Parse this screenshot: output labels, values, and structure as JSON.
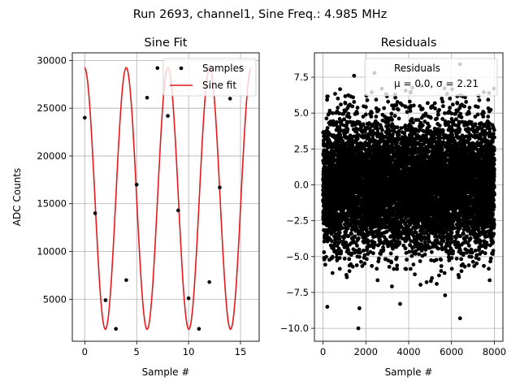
{
  "suptitle": "Run 2693, channel1, Sine Freq.: 4.985 MHz",
  "chart_data": [
    {
      "type": "line",
      "title": "Sine Fit",
      "xlabel": "Sample #",
      "ylabel": "ADC Counts",
      "xlim": [
        -1.2,
        16.8
      ],
      "ylim": [
        600,
        30800
      ],
      "xticks": [
        0,
        5,
        10,
        15
      ],
      "xtick_labels": [
        "0",
        "5",
        "10",
        "15"
      ],
      "yticks": [
        5000,
        10000,
        15000,
        20000,
        25000,
        30000
      ],
      "ytick_labels": [
        "5000",
        "10000",
        "15000",
        "20000",
        "25000",
        "30000"
      ],
      "grid": true,
      "legend": {
        "position": "top-right",
        "entries": [
          "Samples",
          "Sine fit"
        ]
      },
      "series": [
        {
          "name": "Samples",
          "kind": "scatter",
          "color": "#000000",
          "x": [
            0,
            1,
            2,
            3,
            4,
            5,
            6,
            7,
            8,
            9,
            10,
            11,
            12,
            13,
            14,
            15
          ],
          "y": [
            24000,
            14000,
            4900,
            1900,
            7000,
            17000,
            26100,
            29200,
            24200,
            14300,
            5100,
            1900,
            6800,
            16700,
            26000,
            29200
          ]
        },
        {
          "name": "Sine fit",
          "kind": "line",
          "color": "#e41a1c",
          "model": {
            "amplitude": 13700,
            "offset": 15550,
            "frequency_cycles_per_sample": 0.2488,
            "phase_rad": 1.61,
            "x_range": [
              0,
              16
            ]
          }
        }
      ]
    },
    {
      "type": "scatter",
      "title": "Residuals",
      "xlabel": "Sample #",
      "ylabel": "",
      "xlim": [
        -400,
        8400
      ],
      "ylim": [
        -10.9,
        9.2
      ],
      "xticks": [
        0,
        2000,
        4000,
        6000,
        8000
      ],
      "xtick_labels": [
        "0",
        "2000",
        "4000",
        "6000",
        "8000"
      ],
      "yticks": [
        -10.0,
        -7.5,
        -5.0,
        -2.5,
        0.0,
        2.5,
        5.0,
        7.5
      ],
      "ytick_labels": [
        "−10.0",
        "−7.5",
        "−5.0",
        "−2.5",
        "0.0",
        "2.5",
        "5.0",
        "7.5"
      ],
      "grid": true,
      "legend": {
        "position": "top-right",
        "entries": [
          "Residuals",
          "μ = 0.0, σ = 2.21"
        ]
      },
      "series": [
        {
          "name": "Residuals",
          "color": "#000000",
          "n_points": 8000,
          "mean": 0.0,
          "sigma": 2.21,
          "outliers": [
            {
              "x": 1650,
              "y": -10.0
            },
            {
              "x": 6400,
              "y": -9.3
            },
            {
              "x": 200,
              "y": -8.5
            },
            {
              "x": 3600,
              "y": -8.3
            },
            {
              "x": 5700,
              "y": -7.7
            },
            {
              "x": 1700,
              "y": -8.6
            },
            {
              "x": 2400,
              "y": 7.8
            },
            {
              "x": 6400,
              "y": 8.4
            },
            {
              "x": 1450,
              "y": 7.6
            },
            {
              "x": 4600,
              "y": 6.9
            },
            {
              "x": 7750,
              "y": 6.4
            }
          ]
        }
      ]
    }
  ]
}
